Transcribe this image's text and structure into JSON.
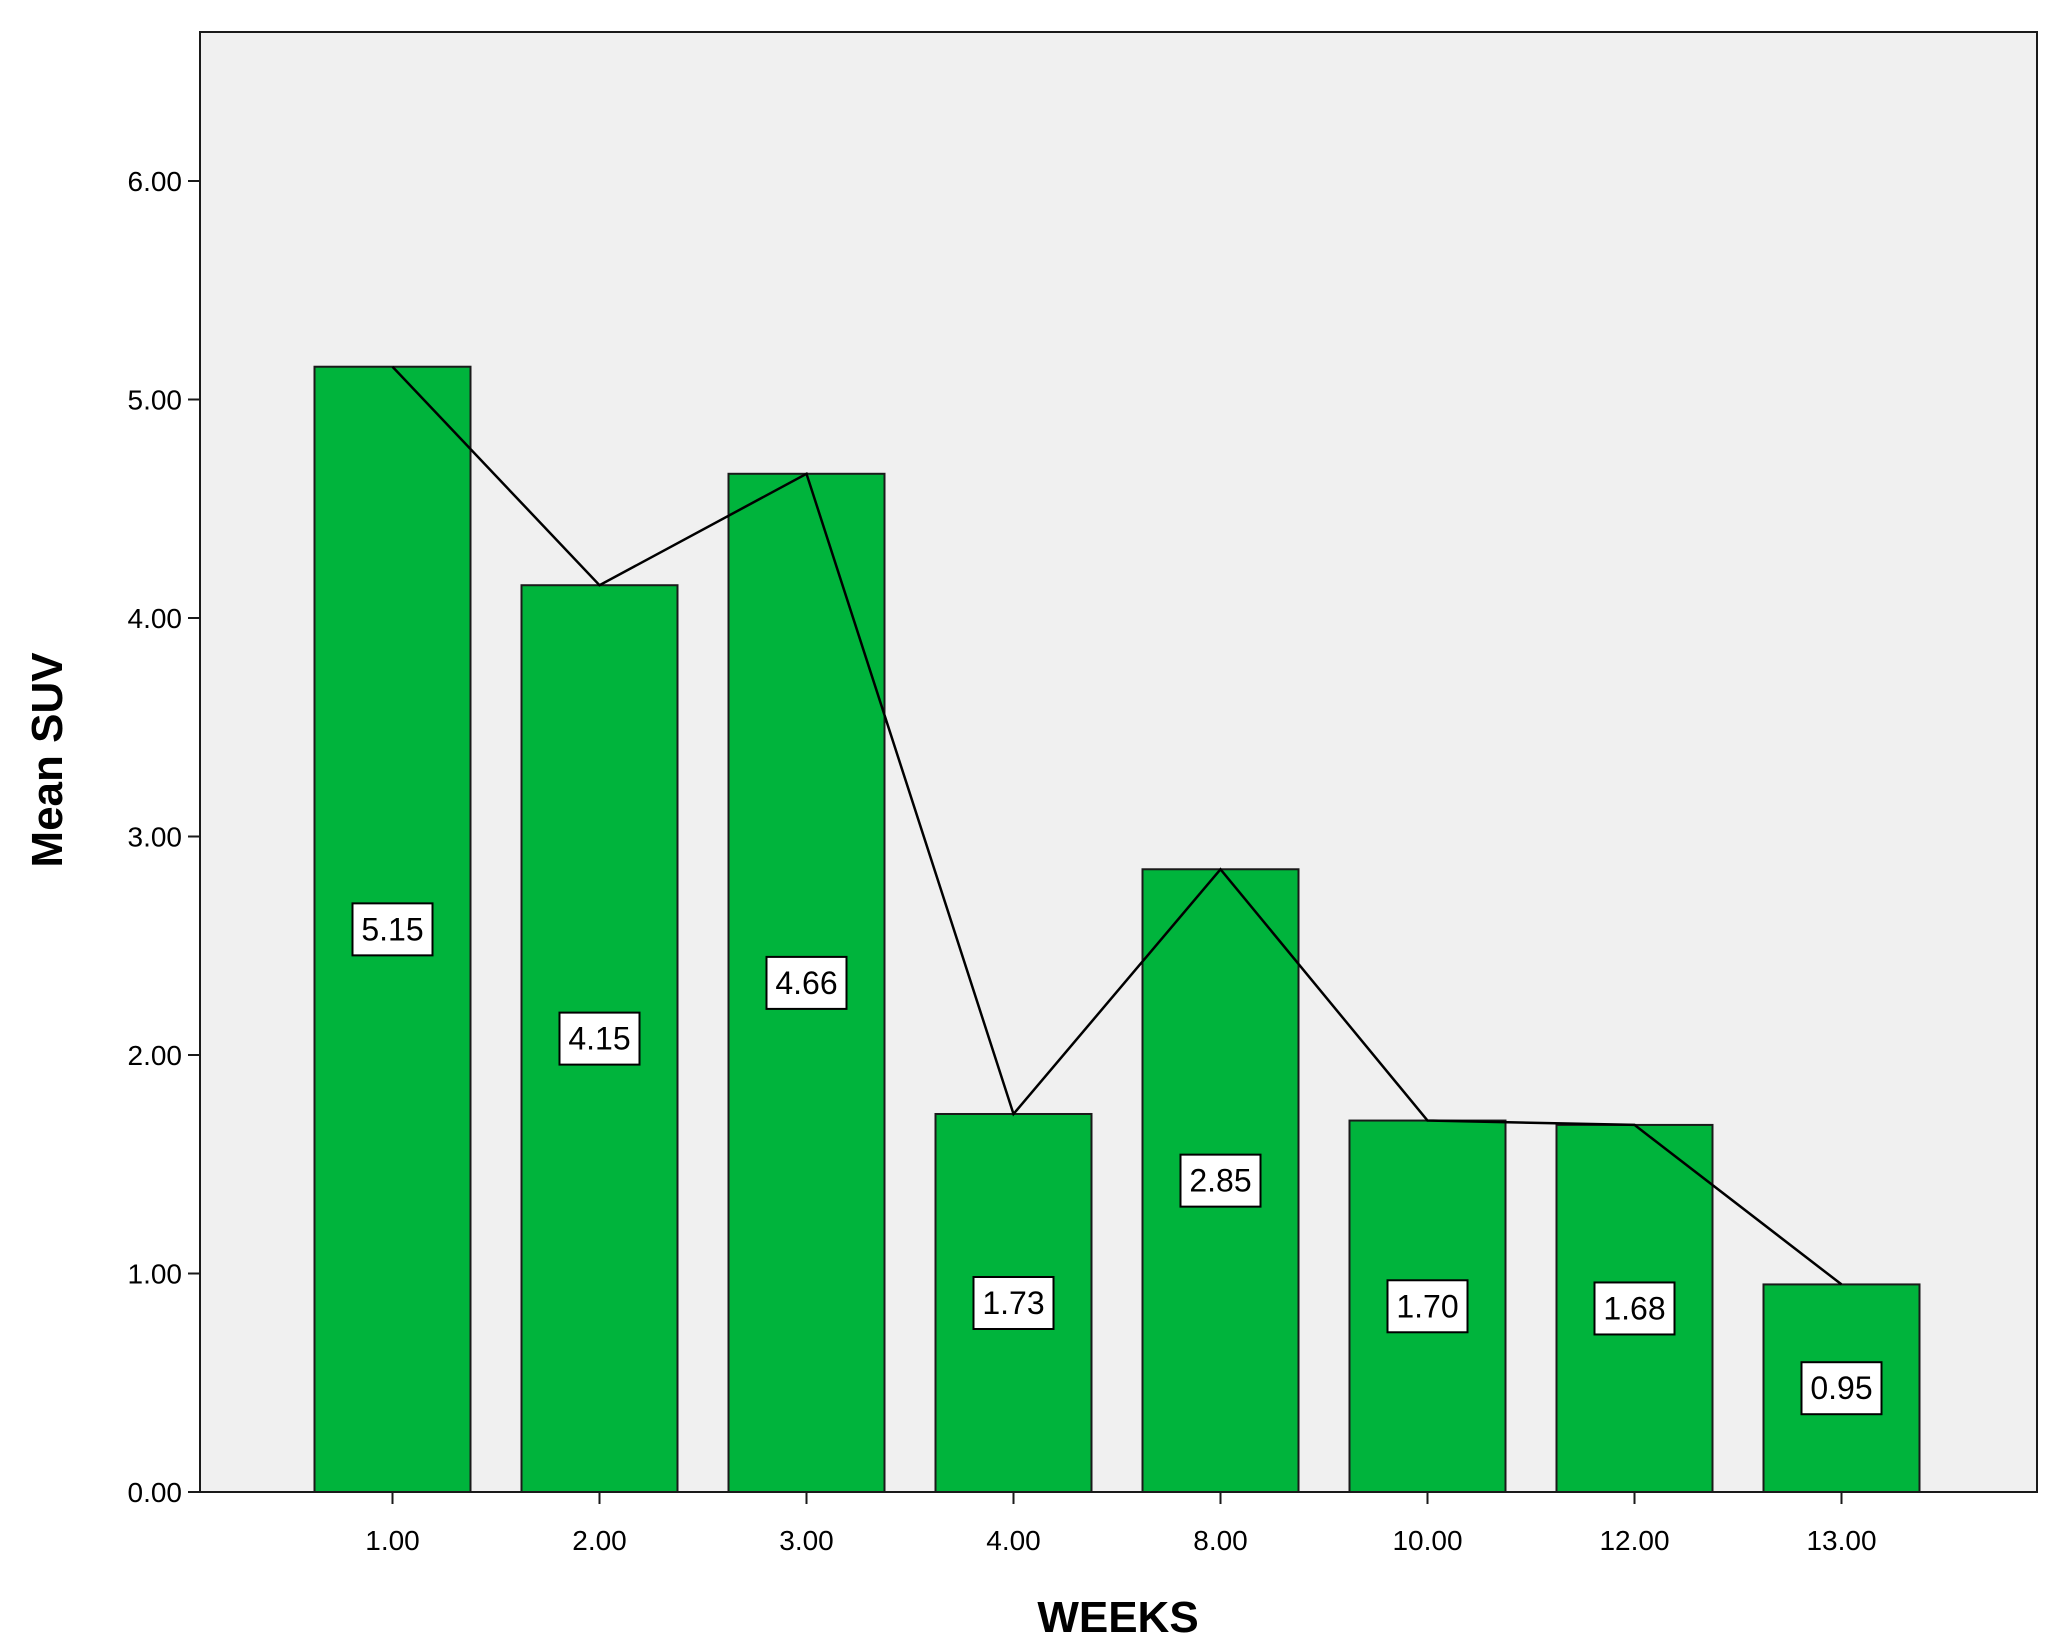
{
  "chart_data": {
    "type": "bar",
    "title": "",
    "xlabel": "WEEKS",
    "ylabel": "Mean SUV",
    "categories": [
      "1.00",
      "2.00",
      "3.00",
      "4.00",
      "8.00",
      "10.00",
      "12.00",
      "13.00"
    ],
    "values": [
      5.15,
      4.15,
      4.66,
      1.73,
      2.85,
      1.7,
      1.68,
      0.95
    ],
    "data_labels": [
      "5.15",
      "4.15",
      "4.66",
      "1.73",
      "2.85",
      "1.70",
      "1.68",
      "0.95"
    ],
    "overlay_line": true,
    "ylim": [
      0,
      6.6
    ],
    "yticks": [
      0,
      1,
      2,
      3,
      4,
      5,
      6
    ],
    "ytick_labels": [
      "0.00",
      "1.00",
      "2.00",
      "3.00",
      "4.00",
      "5.00",
      "6.00"
    ],
    "grid": false,
    "legend": "none",
    "colors": {
      "bar_fill": "#00B43C",
      "bar_stroke": "#1a1a1a",
      "plot_background": "#F0F0F0",
      "line": "#000000"
    }
  }
}
